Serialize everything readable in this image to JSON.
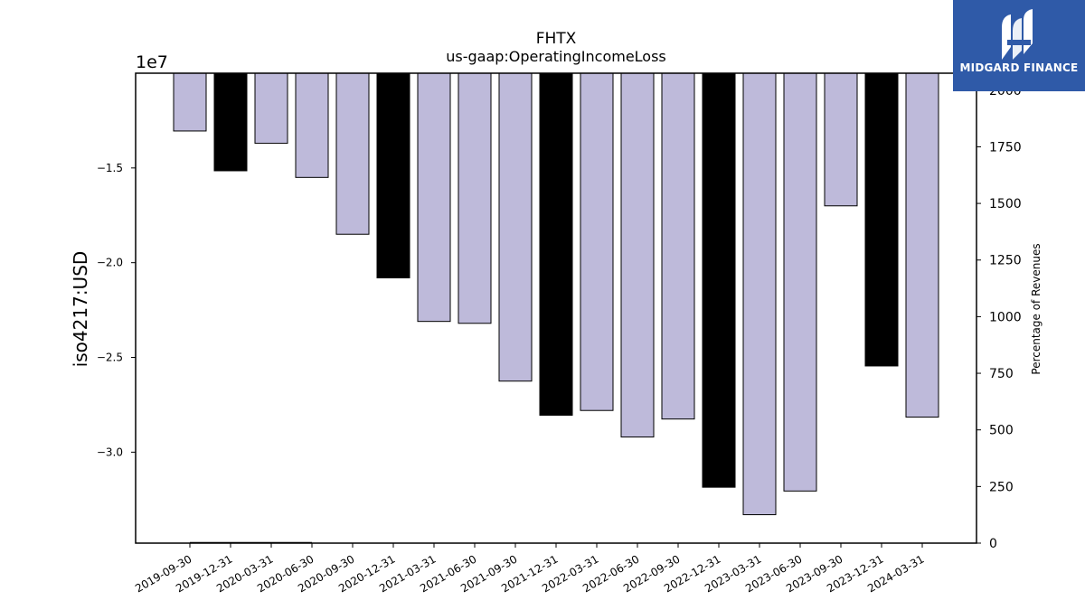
{
  "chart_data": {
    "type": "bar",
    "title": "FHTX",
    "subtitle": "us-gaap:OperatingIncomeLoss",
    "ylabel": "iso4217:USD",
    "y2label": "Percentage of Revenues",
    "offset_label": "1e7",
    "ylim": [
      -34800000,
      -10000000
    ],
    "y_ticks": [
      -15000000,
      -20000000,
      -25000000,
      -30000000
    ],
    "y_tick_labels": [
      "−1.5",
      "−2.0",
      "−2.5",
      "−3.0"
    ],
    "y2lim": [
      0,
      2075
    ],
    "y2_ticks": [
      0,
      250,
      500,
      750,
      1000,
      1250,
      1500,
      1750,
      2000
    ],
    "y2_tick_labels": [
      "0",
      "250",
      "500",
      "750",
      "1000",
      "1250",
      "1500",
      "1750",
      "2000"
    ],
    "categories": [
      "2019-09-30",
      "2019-12-31",
      "2020-03-31",
      "2020-06-30",
      "2020-09-30",
      "2020-12-31",
      "2021-03-31",
      "2021-06-30",
      "2021-09-30",
      "2021-12-31",
      "2022-03-31",
      "2022-06-30",
      "2022-09-30",
      "2022-12-31",
      "2023-03-31",
      "2023-06-30",
      "2023-09-30",
      "2023-12-31",
      "2024-03-31"
    ],
    "values": [
      -13050000,
      -15150000,
      -13700000,
      -15500000,
      -18500000,
      -20800000,
      -23100000,
      -23200000,
      -26250000,
      -28050000,
      -27800000,
      -29200000,
      -28250000,
      -31850000,
      -33300000,
      -32050000,
      -17000000,
      -25450000,
      -28150000
    ],
    "annual": [
      false,
      true,
      false,
      false,
      false,
      true,
      false,
      false,
      false,
      true,
      false,
      false,
      false,
      true,
      false,
      false,
      false,
      true,
      false
    ],
    "colors": {
      "quarterly": "#bebada",
      "annual": "#000000",
      "edge": "#000000"
    },
    "percentage_of_revenues": [
      {
        "x": "2019-09-30",
        "value": 2
      },
      {
        "x": "2020-06-30",
        "value": 2
      }
    ],
    "grid": false
  },
  "logo": {
    "text": "MIDGARD FINANCE",
    "bg": "#2f5aa8"
  }
}
